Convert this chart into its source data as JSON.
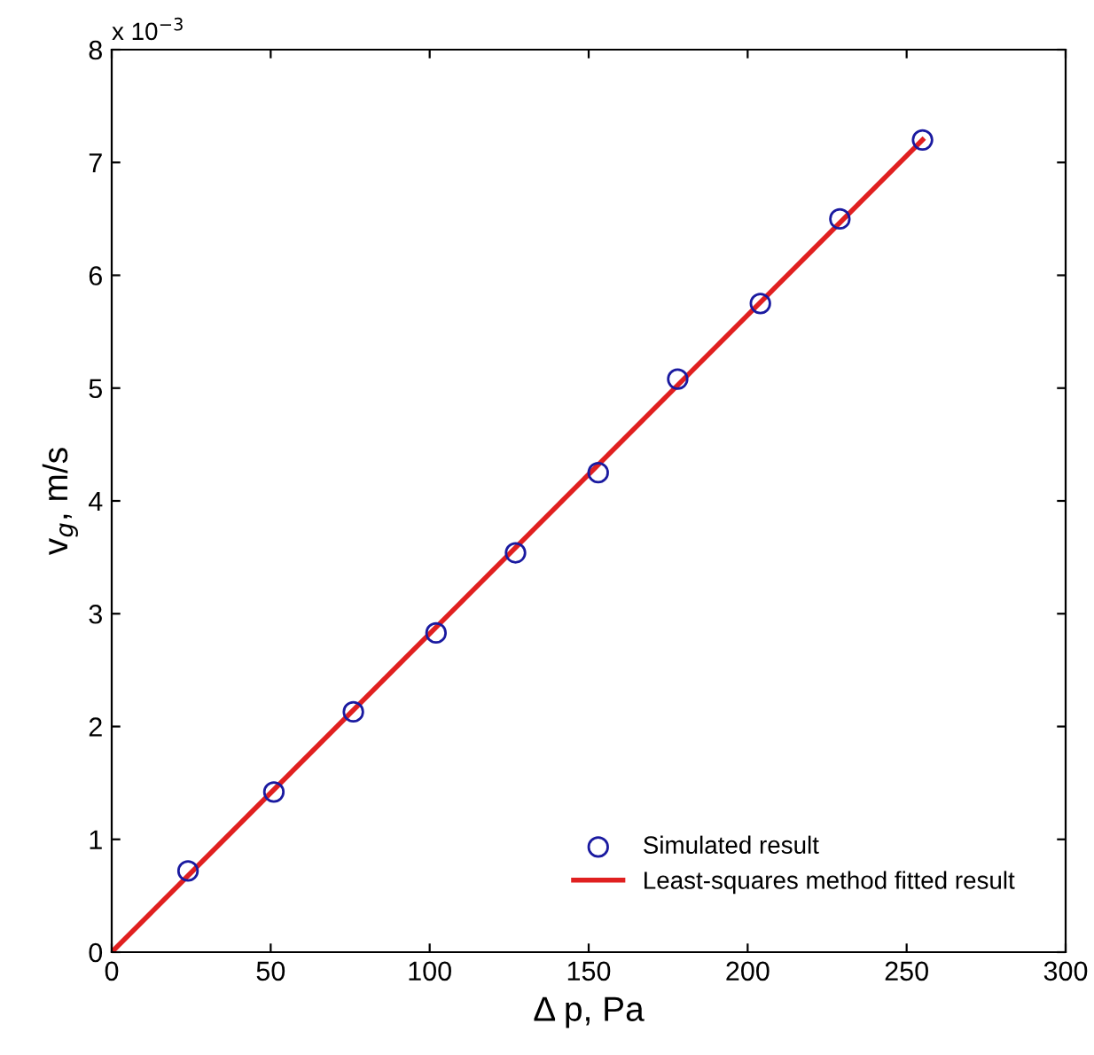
{
  "chart_data": {
    "type": "scatter",
    "xlabel": "Δ p, Pa",
    "ylabel": "v$_{g}$, m/s",
    "xlim": [
      0,
      300
    ],
    "xticks": [
      0,
      50,
      100,
      150,
      200,
      250,
      300
    ],
    "ylim": [
      0,
      8
    ],
    "yticks": [
      0,
      1,
      2,
      3,
      4,
      5,
      6,
      7,
      8
    ],
    "annotations": [
      "x 10$^{−3}$"
    ],
    "grid": false,
    "legend": "bottom right",
    "series": [
      {
        "name": "Simulated result",
        "color": "#1a1aa0",
        "marker": "circle",
        "x": [
          24,
          51,
          76,
          102,
          127,
          153,
          178,
          204,
          229,
          255
        ],
        "values": [
          0.72,
          1.42,
          2.13,
          2.83,
          3.54,
          4.25,
          5.08,
          5.75,
          6.5,
          7.2
        ]
      },
      {
        "name": "Least-squares method fitted result",
        "type": "line",
        "color": "#e02020",
        "marker": "none",
        "line_style": "solid",
        "x": [
          0,
          255
        ],
        "values": [
          0,
          7.2
        ]
      }
    ]
  }
}
